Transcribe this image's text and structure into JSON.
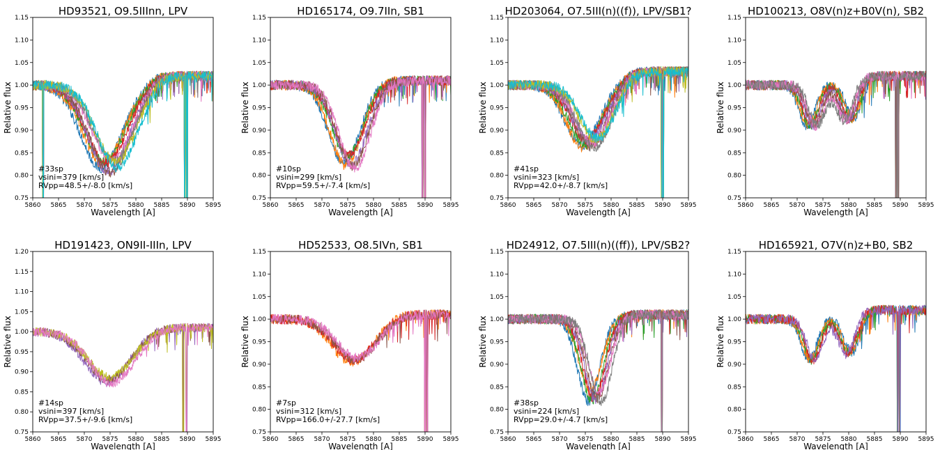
{
  "chart_data": [
    {
      "type": "line",
      "title": "HD93521, O9.5IIInn, LPV",
      "xlabel": "Wavelength [A]",
      "ylabel": "Relative flux",
      "xlim": [
        5860,
        5895
      ],
      "ylim": [
        0.75,
        1.15
      ],
      "xticks": [
        "5860",
        "5865",
        "5870",
        "5875",
        "5880",
        "5885",
        "5890",
        "5895"
      ],
      "yticks": [
        "0.75",
        "0.80",
        "0.85",
        "0.90",
        "0.95",
        "1.00",
        "1.05",
        "1.10",
        "1.15"
      ],
      "annotation": [
        "#33sp",
        "vsini=379 [km/s]",
        "RVpp=48.5+/-8.0 [km/s]"
      ],
      "profile": {
        "center": 5875.0,
        "depth": 0.18,
        "width": 5.5,
        "right_shoulder": 1.02
      },
      "spike_lines": [
        5862.0,
        5889.5,
        5889.9
      ],
      "series_colors": [
        "#1f77b4",
        "#ff7f0e",
        "#2ca02c",
        "#d62728",
        "#9467bd",
        "#8c564b",
        "#e377c2",
        "#7f7f7f",
        "#bcbd22",
        "#17becf"
      ]
    },
    {
      "type": "line",
      "title": "HD165174, O9.7IIn, SB1",
      "xlabel": "Wavelength [A]",
      "ylabel": "Relative flux",
      "xlim": [
        5860,
        5895
      ],
      "ylim": [
        0.75,
        1.15
      ],
      "xticks": [
        "5860",
        "5865",
        "5870",
        "5875",
        "5880",
        "5885",
        "5890",
        "5895"
      ],
      "yticks": [
        "0.75",
        "0.80",
        "0.85",
        "0.90",
        "0.95",
        "1.00",
        "1.05",
        "1.10",
        "1.15"
      ],
      "annotation": [
        "#10sp",
        "vsini=299 [km/s]",
        "RVpp=59.5+/-7.4 [km/s]"
      ],
      "profile": {
        "center": 5875.5,
        "depth": 0.17,
        "width": 4.2,
        "right_shoulder": 1.01
      },
      "spike_lines": [
        5889.5,
        5890.0
      ],
      "series_colors": [
        "#1f77b4",
        "#ff7f0e",
        "#2ca02c",
        "#d62728",
        "#9467bd",
        "#8c564b",
        "#e377c2"
      ]
    },
    {
      "type": "line",
      "title": "HD203064, O7.5III(n)((f)), LPV/SB1?",
      "xlabel": "Wavelength [A]",
      "ylabel": "Relative flux",
      "xlim": [
        5860,
        5895
      ],
      "ylim": [
        0.75,
        1.15
      ],
      "xticks": [
        "5860",
        "5865",
        "5870",
        "5875",
        "5880",
        "5885",
        "5890",
        "5895"
      ],
      "yticks": [
        "0.75",
        "0.80",
        "0.85",
        "0.90",
        "0.95",
        "1.00",
        "1.05",
        "1.10",
        "1.15"
      ],
      "annotation": [
        "#41sp",
        "vsini=323 [km/s]",
        "RVpp=42.0+/-8.7 [km/s]"
      ],
      "profile": {
        "center": 5876.0,
        "depth": 0.13,
        "width": 4.5,
        "right_shoulder": 1.03
      },
      "spike_lines": [
        5889.8,
        5890.1
      ],
      "series_colors": [
        "#1f77b4",
        "#ff7f0e",
        "#2ca02c",
        "#d62728",
        "#9467bd",
        "#8c564b",
        "#e377c2",
        "#7f7f7f",
        "#bcbd22",
        "#17becf"
      ]
    },
    {
      "type": "line",
      "title": "HD100213, O8V(n)z+B0V(n), SB2",
      "xlabel": "Wavelength [A]",
      "ylabel": "Relative flux",
      "xlim": [
        5860,
        5895
      ],
      "ylim": [
        0.75,
        1.15
      ],
      "xticks": [
        "5860",
        "5865",
        "5870",
        "5875",
        "5880",
        "5885",
        "5890",
        "5895"
      ],
      "yticks": [
        "0.75",
        "0.80",
        "0.85",
        "0.90",
        "0.95",
        "1.00",
        "1.05",
        "1.10",
        "1.15"
      ],
      "annotation": [],
      "profile": {
        "center": 5876.0,
        "depth": 0.1,
        "width": 3.5,
        "right_shoulder": 1.02,
        "double": true
      },
      "spike_lines": [
        5889.2,
        5889.6
      ],
      "series_colors": [
        "#1f77b4",
        "#ff7f0e",
        "#2ca02c",
        "#d62728",
        "#9467bd",
        "#8c564b",
        "#e377c2",
        "#7f7f7f"
      ]
    },
    {
      "type": "line",
      "title": "HD191423, ON9II-IIIn, LPV",
      "xlabel": "Wavelength [A]",
      "ylabel": "Relative flux",
      "xlim": [
        5860,
        5895
      ],
      "ylim": [
        0.75,
        1.2
      ],
      "xticks": [
        "5860",
        "5865",
        "5870",
        "5875",
        "5880",
        "5885",
        "5890",
        "5895"
      ],
      "yticks": [
        "0.75",
        "0.80",
        "0.85",
        "0.90",
        "0.95",
        "1.00",
        "1.05",
        "1.10",
        "1.15",
        "1.20"
      ],
      "annotation": [
        "#14sp",
        "vsini=397 [km/s]",
        "RVpp=37.5+/-9.6 [km/s]"
      ],
      "profile": {
        "center": 5875.0,
        "depth": 0.12,
        "width": 6.0,
        "right_shoulder": 1.01
      },
      "spike_lines": [
        5889.2,
        5889.8
      ],
      "series_colors": [
        "#9467bd",
        "#8c564b",
        "#bcbd22",
        "#e377c2"
      ]
    },
    {
      "type": "line",
      "title": "HD52533, O8.5IVn, SB1",
      "xlabel": "Wavelength [A]",
      "ylabel": "Relative flux",
      "xlim": [
        5860,
        5895
      ],
      "ylim": [
        0.75,
        1.15
      ],
      "xticks": [
        "5860",
        "5865",
        "5870",
        "5875",
        "5880",
        "5885",
        "5890",
        "5895"
      ],
      "yticks": [
        "0.75",
        "0.80",
        "0.85",
        "0.90",
        "0.95",
        "1.00",
        "1.05",
        "1.10",
        "1.15"
      ],
      "annotation": [
        "#7sp",
        "vsini=312 [km/s]",
        "RVpp=166.0+/-27.7 [km/s]"
      ],
      "profile": {
        "center": 5876.5,
        "depth": 0.09,
        "width": 5.5,
        "right_shoulder": 1.01
      },
      "spike_lines": [
        5890.0,
        5890.4
      ],
      "series_colors": [
        "#ff7f0e",
        "#d62728",
        "#8c564b",
        "#e377c2"
      ]
    },
    {
      "type": "line",
      "title": "HD24912, O7.5III(n)((ff)), LPV/SB2?",
      "xlabel": "Wavelength [A]",
      "ylabel": "Relative flux",
      "xlim": [
        5860,
        5895
      ],
      "ylim": [
        0.75,
        1.15
      ],
      "xticks": [
        "5860",
        "5865",
        "5870",
        "5875",
        "5880",
        "5885",
        "5890",
        "5895"
      ],
      "yticks": [
        "0.75",
        "0.80",
        "0.85",
        "0.90",
        "0.95",
        "1.00",
        "1.05",
        "1.10",
        "1.15"
      ],
      "annotation": [
        "#38sp",
        "vsini=224 [km/s]",
        "RVpp=29.0+/-4.7 [km/s]"
      ],
      "profile": {
        "center": 5877.0,
        "depth": 0.17,
        "width": 3.0,
        "right_shoulder": 1.01
      },
      "spike_lines": [
        5889.8
      ],
      "series_colors": [
        "#1f77b4",
        "#ff7f0e",
        "#2ca02c",
        "#d62728",
        "#9467bd",
        "#8c564b",
        "#e377c2",
        "#7f7f7f"
      ]
    },
    {
      "type": "line",
      "title": "HD165921, O7V(n)z+B0, SB2",
      "xlabel": "Wavelength [A]",
      "ylabel": "Relative flux",
      "xlim": [
        5860,
        5895
      ],
      "ylim": [
        0.75,
        1.15
      ],
      "xticks": [
        "5860",
        "5865",
        "5870",
        "5875",
        "5880",
        "5885",
        "5890",
        "5895"
      ],
      "yticks": [
        "0.75",
        "0.80",
        "0.85",
        "0.90",
        "0.95",
        "1.00",
        "1.05",
        "1.10",
        "1.15"
      ],
      "annotation": [],
      "profile": {
        "center": 5876.0,
        "depth": 0.1,
        "width": 3.2,
        "right_shoulder": 1.02,
        "double": true
      },
      "spike_lines": [
        5889.5,
        5889.9
      ],
      "series_colors": [
        "#1f77b4",
        "#ff7f0e",
        "#2ca02c",
        "#d62728",
        "#9467bd"
      ]
    }
  ]
}
